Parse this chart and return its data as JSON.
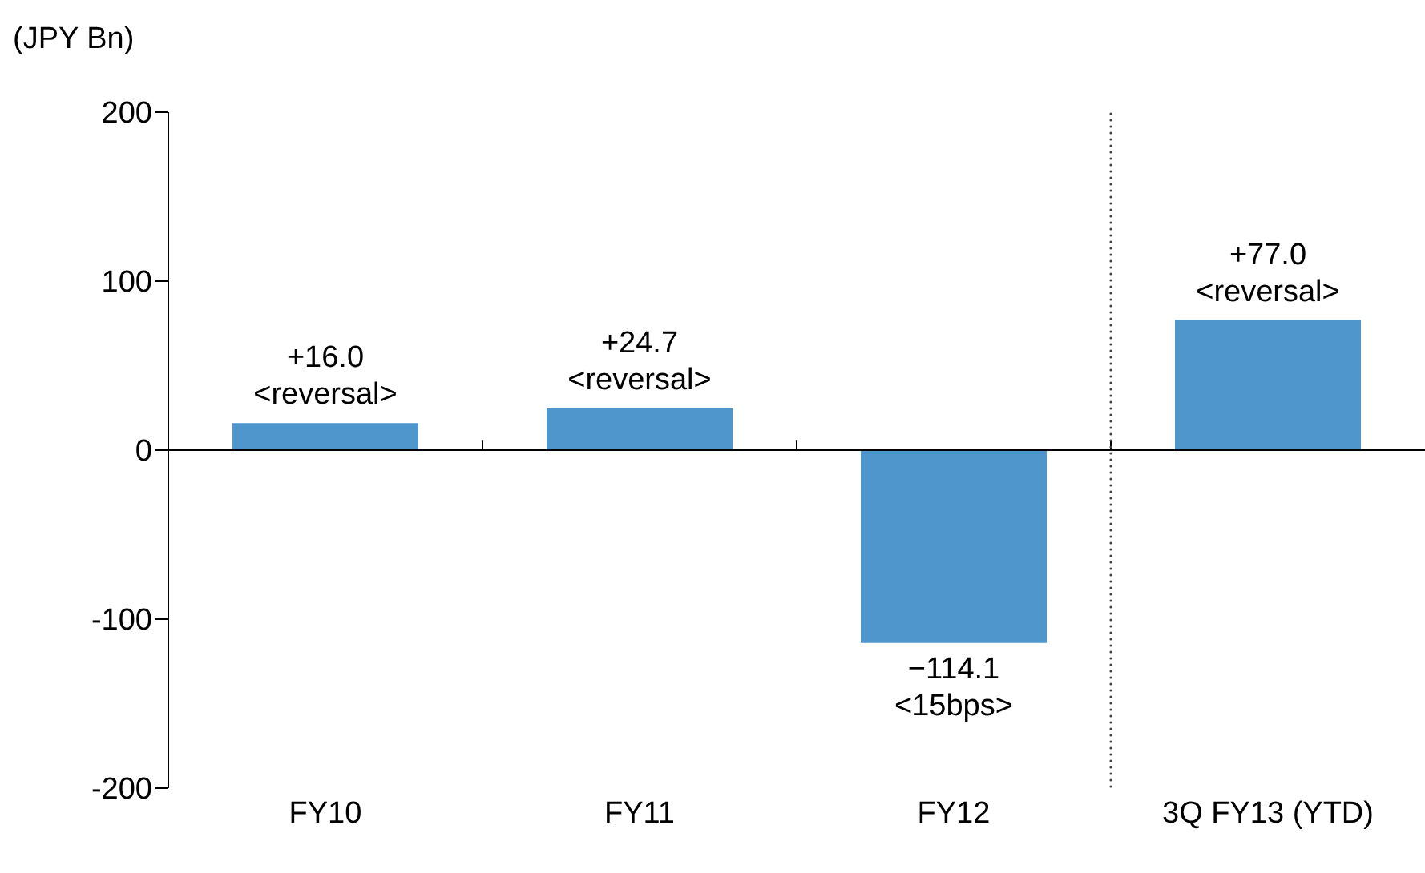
{
  "chart_data": {
    "type": "bar",
    "ylabel": "(JPY Bn)",
    "categories": [
      "FY10",
      "FY11",
      "FY12",
      "3Q FY13 (YTD)"
    ],
    "values": [
      16.0,
      24.7,
      -114.1,
      77.0
    ],
    "color": "#4f96cc",
    "value_labels": [
      "+16.0\n<reversal>",
      "+24.7\n<reversal>",
      "−114.1\n<15bps>",
      "+77.0\n<reversal>"
    ],
    "ylim": [
      -200,
      200
    ],
    "yticks": [
      -200,
      -100,
      0,
      100,
      200
    ],
    "legend": false
  }
}
